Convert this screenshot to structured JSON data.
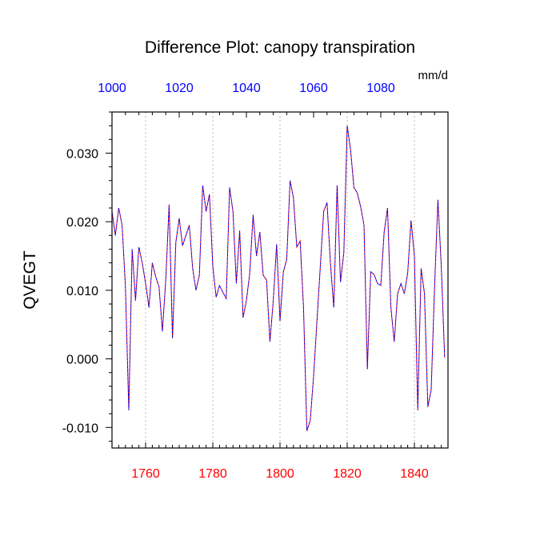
{
  "chart_data": {
    "type": "line",
    "title": "Difference Plot: canopy transpiration",
    "units": "mm/d",
    "ylabel": "QVEGT",
    "xlabel": "",
    "x_range": [
      1750,
      1850
    ],
    "x_ticks": [
      1760,
      1780,
      1800,
      1820,
      1840
    ],
    "x_tick_labels": [
      "1760",
      "1780",
      "1800",
      "1820",
      "1840"
    ],
    "x_tick_color": "#ff0000",
    "top_axis_range": [
      1000,
      1100
    ],
    "top_ticks": [
      1000,
      1020,
      1040,
      1060,
      1080
    ],
    "top_tick_labels": [
      "1000",
      "1020",
      "1040",
      "1060",
      "1080"
    ],
    "top_tick_color": "#0000ff",
    "ylim": [
      -0.013,
      0.036
    ],
    "y_ticks": [
      -0.01,
      0.0,
      0.01,
      0.02,
      0.03
    ],
    "y_tick_labels": [
      "-0.010",
      "0.000",
      "0.010",
      "0.020",
      "0.030"
    ],
    "grid": "vertical dotted lines at major x ticks",
    "series": [
      {
        "color": "#ff0000",
        "style": "dashed",
        "x": [
          1750,
          1751,
          1752,
          1753,
          1754,
          1755,
          1756,
          1757,
          1758,
          1759,
          1760,
          1761,
          1762,
          1763,
          1764,
          1765,
          1766,
          1767,
          1768,
          1769,
          1770,
          1771,
          1772,
          1773,
          1774,
          1775,
          1776,
          1777,
          1778,
          1779,
          1780,
          1781,
          1782,
          1783,
          1784,
          1785,
          1786,
          1787,
          1788,
          1789,
          1790,
          1791,
          1792,
          1793,
          1794,
          1795,
          1796,
          1797,
          1798,
          1799,
          1800,
          1801,
          1802,
          1803,
          1804,
          1805,
          1806,
          1807,
          1808,
          1809,
          1810,
          1811,
          1812,
          1813,
          1814,
          1815,
          1816,
          1817,
          1818,
          1819,
          1820,
          1821,
          1822,
          1823,
          1824,
          1825,
          1826,
          1827,
          1828,
          1829,
          1830,
          1831,
          1832,
          1833,
          1834,
          1835,
          1836,
          1837,
          1838,
          1839,
          1840,
          1841,
          1842,
          1843,
          1844,
          1845,
          1846,
          1847,
          1848,
          1849
        ],
        "y": [
          0.0215,
          0.018,
          0.022,
          0.0195,
          0.0105,
          -0.0075,
          0.016,
          0.0085,
          0.0163,
          0.014,
          0.011,
          0.0075,
          0.014,
          0.012,
          0.0105,
          0.004,
          0.0115,
          0.0225,
          0.003,
          0.017,
          0.0205,
          0.0165,
          0.018,
          0.0195,
          0.0132,
          0.01,
          0.0122,
          0.0253,
          0.0215,
          0.024,
          0.0135,
          0.009,
          0.0107,
          0.0097,
          0.0088,
          0.025,
          0.0215,
          0.011,
          0.0187,
          0.006,
          0.0085,
          0.0125,
          0.021,
          0.015,
          0.0185,
          0.0122,
          0.0115,
          0.0025,
          0.0085,
          0.0167,
          0.0055,
          0.0127,
          0.0145,
          0.026,
          0.0235,
          0.0163,
          0.0172,
          0.0075,
          -0.0105,
          -0.009,
          -0.0025,
          0.0055,
          0.0135,
          0.0215,
          0.0228,
          0.014,
          0.0075,
          0.0253,
          0.0112,
          0.0155,
          0.034,
          0.0305,
          0.025,
          0.0242,
          0.0222,
          0.0195,
          -0.0015,
          0.0127,
          0.0123,
          0.011,
          0.0107,
          0.0185,
          0.022,
          0.0075,
          0.0025,
          0.0095,
          0.011,
          0.0095,
          0.0125,
          0.0202,
          0.015,
          -0.0075,
          0.0132,
          0.0095,
          -0.007,
          -0.0045,
          0.0105,
          0.0232,
          0.0135,
          0.0002
        ]
      },
      {
        "color": "#0000ff",
        "style": "dashed",
        "x": [
          1750,
          1751,
          1752,
          1753,
          1754,
          1755,
          1756,
          1757,
          1758,
          1759,
          1760,
          1761,
          1762,
          1763,
          1764,
          1765,
          1766,
          1767,
          1768,
          1769,
          1770,
          1771,
          1772,
          1773,
          1774,
          1775,
          1776,
          1777,
          1778,
          1779,
          1780,
          1781,
          1782,
          1783,
          1784,
          1785,
          1786,
          1787,
          1788,
          1789,
          1790,
          1791,
          1792,
          1793,
          1794,
          1795,
          1796,
          1797,
          1798,
          1799,
          1800,
          1801,
          1802,
          1803,
          1804,
          1805,
          1806,
          1807,
          1808,
          1809,
          1810,
          1811,
          1812,
          1813,
          1814,
          1815,
          1816,
          1817,
          1818,
          1819,
          1820,
          1821,
          1822,
          1823,
          1824,
          1825,
          1826,
          1827,
          1828,
          1829,
          1830,
          1831,
          1832,
          1833,
          1834,
          1835,
          1836,
          1837,
          1838,
          1839,
          1840,
          1841,
          1842,
          1843,
          1844,
          1845,
          1846,
          1847,
          1848,
          1849
        ],
        "y": [
          0.0215,
          0.018,
          0.022,
          0.0195,
          0.0105,
          -0.0075,
          0.016,
          0.0085,
          0.0163,
          0.014,
          0.011,
          0.0075,
          0.014,
          0.012,
          0.0105,
          0.004,
          0.0115,
          0.0225,
          0.003,
          0.017,
          0.0205,
          0.0165,
          0.018,
          0.0195,
          0.0132,
          0.01,
          0.0122,
          0.0253,
          0.0215,
          0.024,
          0.0135,
          0.009,
          0.0107,
          0.0097,
          0.0088,
          0.025,
          0.0215,
          0.011,
          0.0187,
          0.006,
          0.0085,
          0.0125,
          0.021,
          0.015,
          0.0185,
          0.0122,
          0.0115,
          0.0025,
          0.0085,
          0.0167,
          0.0055,
          0.0127,
          0.0145,
          0.026,
          0.0235,
          0.0163,
          0.0172,
          0.0075,
          -0.0105,
          -0.009,
          -0.0025,
          0.0055,
          0.0135,
          0.0215,
          0.0228,
          0.014,
          0.0075,
          0.0253,
          0.0112,
          0.0155,
          0.034,
          0.0305,
          0.025,
          0.0242,
          0.0222,
          0.0195,
          -0.0015,
          0.0127,
          0.0123,
          0.011,
          0.0107,
          0.0185,
          0.022,
          0.0075,
          0.0025,
          0.0095,
          0.011,
          0.0095,
          0.0125,
          0.0202,
          0.015,
          -0.0075,
          0.0132,
          0.0095,
          -0.007,
          -0.0045,
          0.0105,
          0.0232,
          0.0135,
          0.0002
        ]
      }
    ]
  }
}
